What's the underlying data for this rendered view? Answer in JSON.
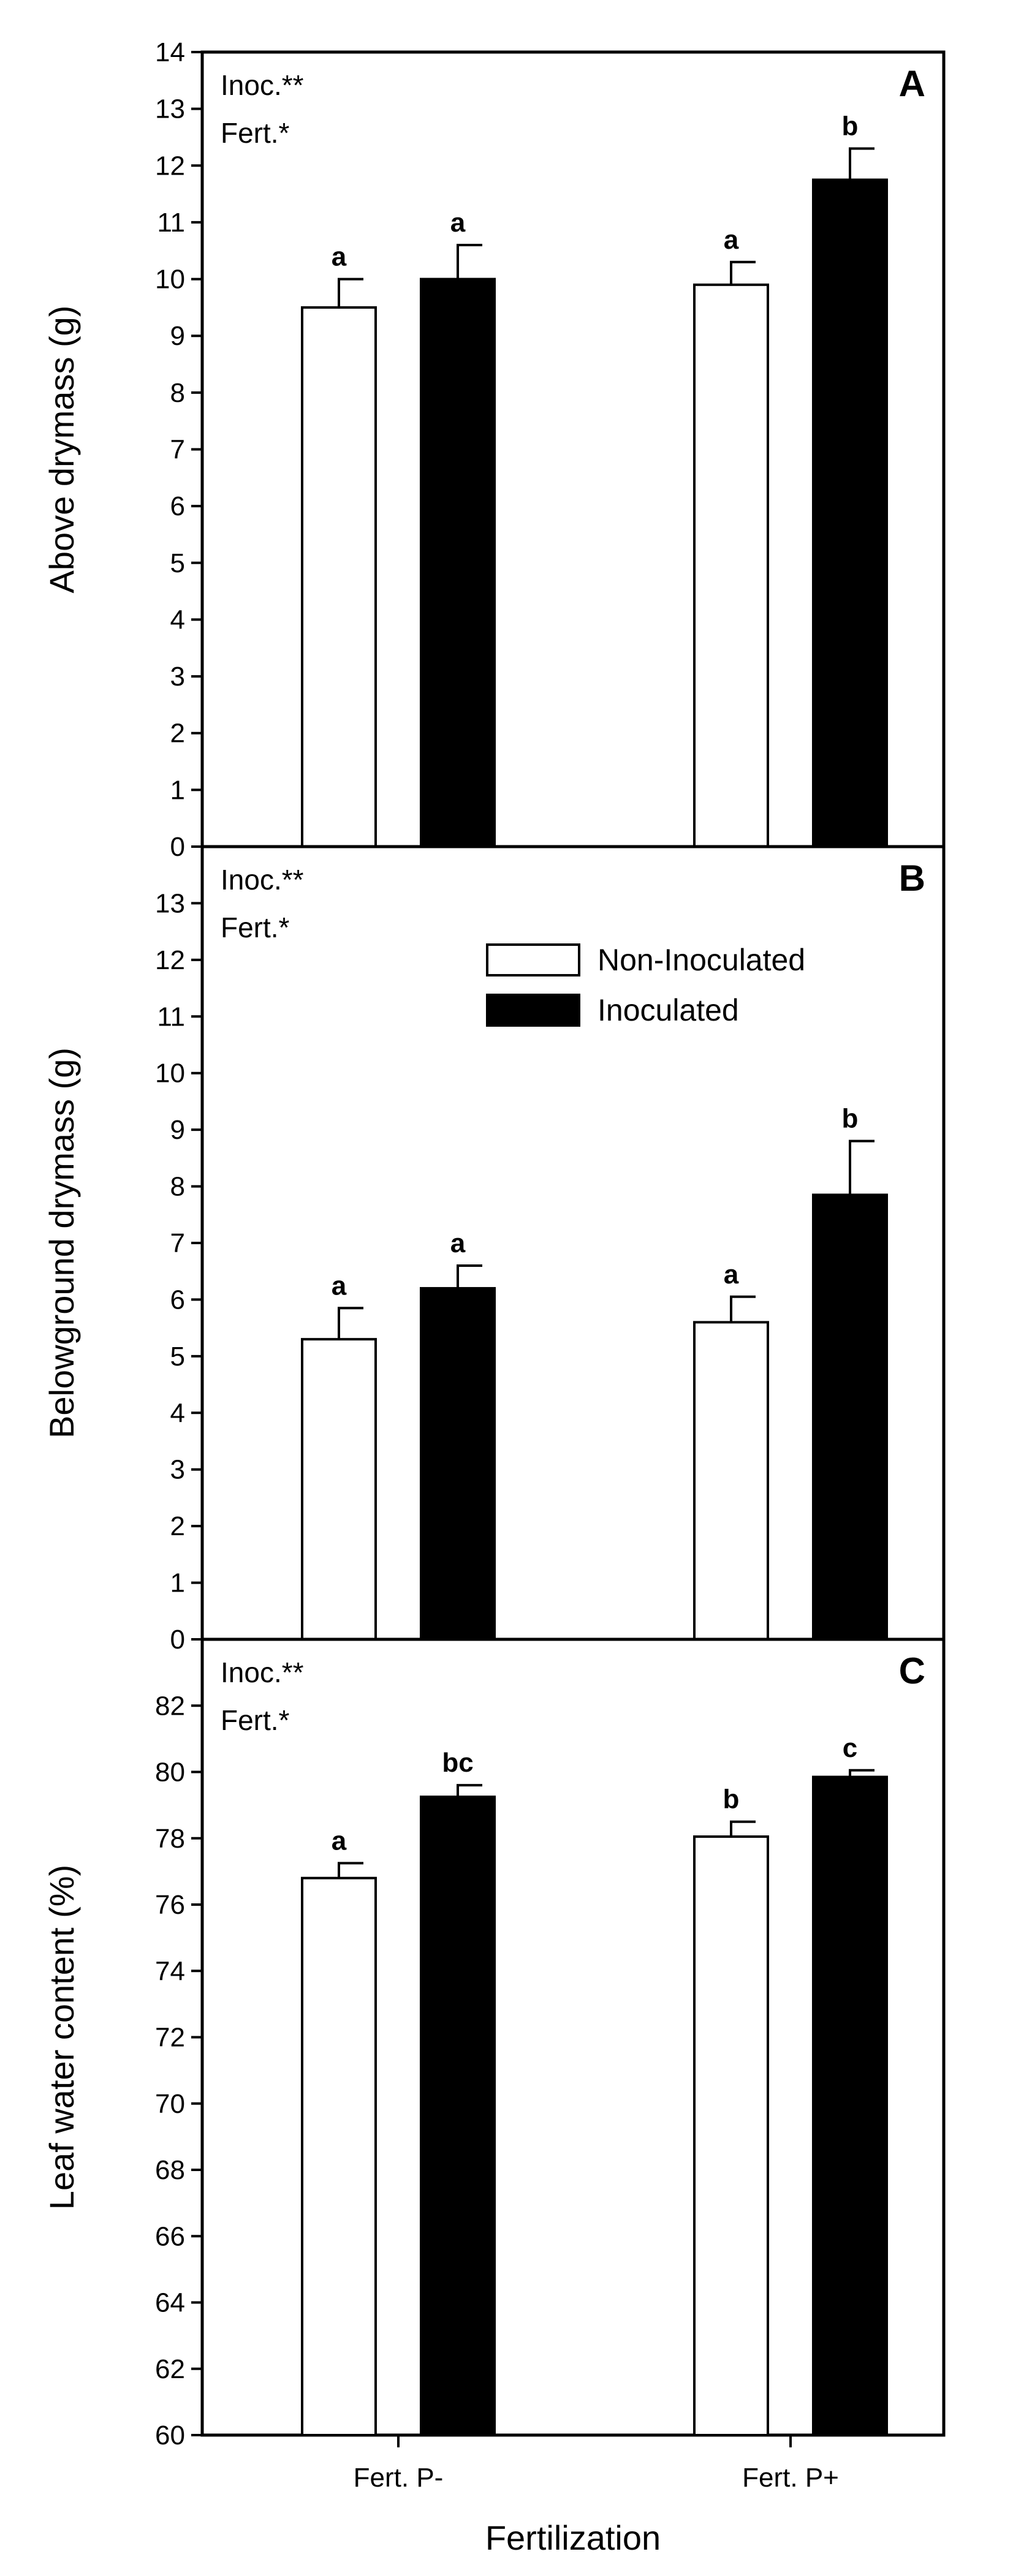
{
  "chart_data": [
    {
      "panel": "A",
      "type": "bar",
      "categories": [
        "Fert. P-",
        "Fert. P+"
      ],
      "series": [
        {
          "name": "Non-Inoculated",
          "color": "#ffffff",
          "values": [
            9.5,
            9.9
          ],
          "errors": [
            0.5,
            0.4
          ],
          "letters": [
            "a",
            "a"
          ]
        },
        {
          "name": "Inoculated",
          "color": "#000000",
          "values": [
            10.0,
            11.75
          ],
          "errors": [
            0.6,
            0.55
          ],
          "letters": [
            "a",
            "b"
          ]
        }
      ],
      "ylabel": "Above drymass (g)",
      "ylim": [
        0,
        14
      ],
      "yticks": [
        "0",
        "1",
        "2",
        "3",
        "4",
        "5",
        "6",
        "7",
        "8",
        "9",
        "10",
        "11",
        "12",
        "13",
        "14"
      ],
      "stats": [
        "Inoc.**",
        "Fert.*"
      ]
    },
    {
      "panel": "B",
      "type": "bar",
      "categories": [
        "Fert. P-",
        "Fert. P+"
      ],
      "series": [
        {
          "name": "Non-Inoculated",
          "color": "#ffffff",
          "values": [
            5.3,
            5.6
          ],
          "errors": [
            0.55,
            0.45
          ],
          "letters": [
            "a",
            "a"
          ]
        },
        {
          "name": "Inoculated",
          "color": "#000000",
          "values": [
            6.2,
            7.85
          ],
          "errors": [
            0.4,
            0.95
          ],
          "letters": [
            "a",
            "b"
          ]
        }
      ],
      "ylabel": "Belowground drymass (g)",
      "ylim": [
        0,
        14
      ],
      "yticks": [
        "0",
        "1",
        "2",
        "3",
        "4",
        "5",
        "6",
        "7",
        "8",
        "9",
        "10",
        "11",
        "12",
        "13"
      ],
      "stats": [
        "Inoc.**",
        "Fert.*"
      ],
      "legend": [
        "Non-Inoculated",
        "Inoculated"
      ]
    },
    {
      "panel": "C",
      "type": "bar",
      "categories": [
        "Fert. P-",
        "Fert. P+"
      ],
      "series": [
        {
          "name": "Non-Inoculated",
          "color": "#ffffff",
          "values": [
            76.8,
            78.05
          ],
          "errors": [
            0.45,
            0.45
          ],
          "letters": [
            "a",
            "b"
          ]
        },
        {
          "name": "Inoculated",
          "color": "#000000",
          "values": [
            79.25,
            79.85
          ],
          "errors": [
            0.35,
            0.2
          ],
          "letters": [
            "bc",
            "c"
          ]
        }
      ],
      "ylabel": "Leaf water content (%)",
      "ylim": [
        60,
        84
      ],
      "yticks": [
        "60",
        "62",
        "64",
        "66",
        "68",
        "70",
        "72",
        "74",
        "76",
        "78",
        "80",
        "82"
      ],
      "stats": [
        "Inoc.**",
        "Fert.*"
      ]
    }
  ],
  "xlabel": "Fertilization",
  "xtick_labels": [
    "Fert. P-",
    "Fert. P+"
  ]
}
